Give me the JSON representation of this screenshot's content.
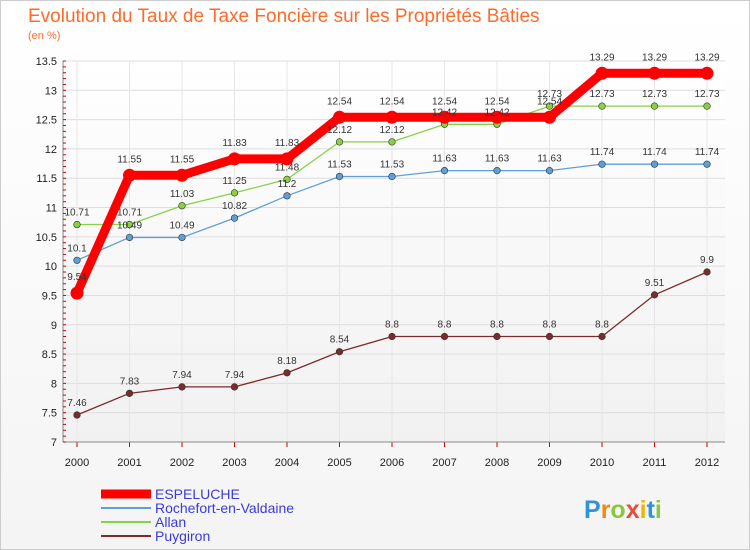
{
  "header": {
    "title": "Evolution du Taux de Taxe Foncière sur les Propriétés Bâties",
    "unit": "(en %)"
  },
  "brand": {
    "logo_text": "Proxiti"
  },
  "chart_data": {
    "type": "line",
    "title": "Evolution du Taux de Taxe Foncière sur les Propriétés Bâties",
    "ylabel": "(en %)",
    "xlabel": "",
    "ylim": [
      7,
      13.5
    ],
    "yticks": [
      "7",
      "7.5",
      "8",
      "8.5",
      "9",
      "9.5",
      "10",
      "10.5",
      "11",
      "11.5",
      "12",
      "12.5",
      "13",
      "13.5"
    ],
    "x": [
      "2000",
      "2001",
      "2002",
      "2003",
      "2004",
      "2005",
      "2006",
      "2007",
      "2008",
      "2009",
      "2010",
      "2011",
      "2012"
    ],
    "legend_position": "bottom-left",
    "series": [
      {
        "name": "ESPELUCHE",
        "color": "#ff0000",
        "values": [
          9.54,
          11.55,
          11.55,
          11.83,
          11.83,
          12.54,
          12.54,
          12.54,
          12.54,
          12.54,
          13.29,
          13.29,
          13.29
        ],
        "labels": [
          "9.54",
          "11.55",
          "11.55",
          "11.83",
          "11.83",
          "12.54",
          "12.54",
          "12.54",
          "12.54",
          "12.54",
          "13.29",
          "13.29",
          "13.29"
        ]
      },
      {
        "name": "Rochefort-en-Valdaine",
        "color": "#5f9fd8",
        "values": [
          10.1,
          10.49,
          10.49,
          10.82,
          11.2,
          11.53,
          11.53,
          11.63,
          11.63,
          11.63,
          11.74,
          11.74,
          11.74
        ],
        "labels": [
          "10.1",
          "10.49",
          "10.49",
          "10.82",
          "11.2",
          "11.53",
          "11.53",
          "11.63",
          "11.63",
          "11.63",
          "11.74",
          "11.74",
          "11.74"
        ]
      },
      {
        "name": "Allan",
        "color": "#88d144",
        "values": [
          10.71,
          10.71,
          11.03,
          11.25,
          11.48,
          12.12,
          12.12,
          12.42,
          12.42,
          12.73,
          12.73,
          12.73,
          12.73
        ],
        "labels": [
          "10.71",
          "10.71",
          "11.03",
          "11.25",
          "11.48",
          "12.12",
          "12.12",
          "12.42",
          "12.42",
          "12.73",
          "12.73",
          "12.73",
          "12.73"
        ]
      },
      {
        "name": "Puygiron",
        "color": "#7b2b2b",
        "values": [
          7.46,
          7.83,
          7.94,
          7.94,
          8.18,
          8.54,
          8.8,
          8.8,
          8.8,
          8.8,
          8.8,
          9.51,
          9.9
        ],
        "labels": [
          "7.46",
          "7.83",
          "7.94",
          "7.94",
          "8.18",
          "8.54",
          "8.8",
          "8.8",
          "8.8",
          "8.8",
          "8.8",
          "9.51",
          "9.9"
        ]
      }
    ]
  }
}
